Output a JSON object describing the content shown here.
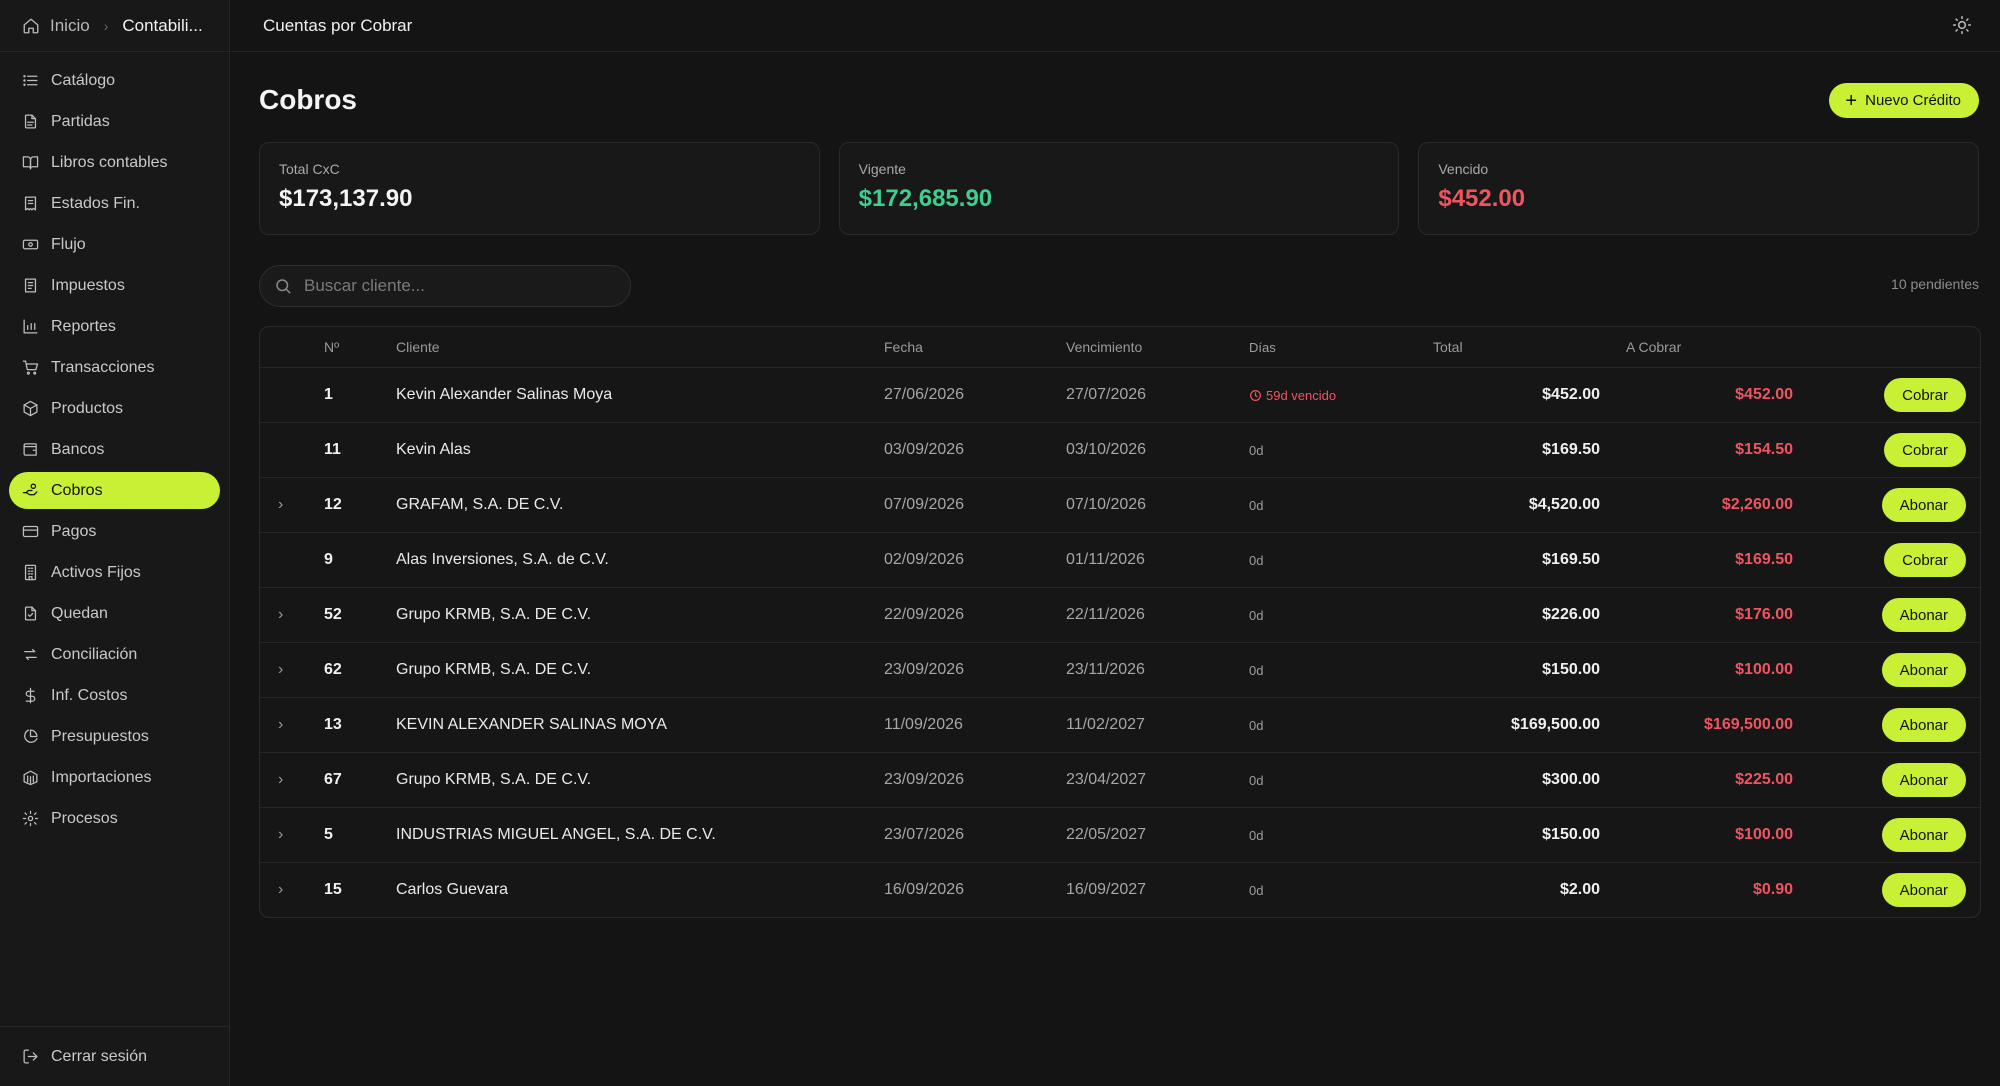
{
  "breadcrumb": {
    "home": "Inicio",
    "current": "Contabili..."
  },
  "sidebar": {
    "items": [
      {
        "label": "Catálogo",
        "icon": "list-icon"
      },
      {
        "label": "Partidas",
        "icon": "file-text-icon"
      },
      {
        "label": "Libros contables",
        "icon": "book-open-icon"
      },
      {
        "label": "Estados Fin.",
        "icon": "receipt-icon"
      },
      {
        "label": "Flujo",
        "icon": "banknote-icon"
      },
      {
        "label": "Impuestos",
        "icon": "tax-receipt-icon"
      },
      {
        "label": "Reportes",
        "icon": "bar-chart-icon"
      },
      {
        "label": "Transacciones",
        "icon": "shopping-cart-icon"
      },
      {
        "label": "Productos",
        "icon": "package-icon"
      },
      {
        "label": "Bancos",
        "icon": "wallet-icon"
      },
      {
        "label": "Cobros",
        "icon": "hand-coins-icon",
        "active": true
      },
      {
        "label": "Pagos",
        "icon": "credit-card-icon"
      },
      {
        "label": "Activos Fijos",
        "icon": "building-icon"
      },
      {
        "label": "Quedan",
        "icon": "file-check-icon"
      },
      {
        "label": "Conciliación",
        "icon": "arrows-exchange-icon"
      },
      {
        "label": "Inf. Costos",
        "icon": "dollar-icon"
      },
      {
        "label": "Presupuestos",
        "icon": "pie-chart-icon"
      },
      {
        "label": "Importaciones",
        "icon": "container-icon"
      },
      {
        "label": "Procesos",
        "icon": "cog-icon"
      }
    ],
    "logout": "Cerrar sesión"
  },
  "topbar": {
    "title": "Cuentas por Cobrar"
  },
  "page": {
    "title": "Cobros",
    "new_button": "Nuevo Crédito"
  },
  "cards": [
    {
      "label": "Total CxC",
      "value": "$173,137.90",
      "color": "#f4f4f4"
    },
    {
      "label": "Vigente",
      "value": "$172,685.90",
      "color": "#3ecf8e"
    },
    {
      "label": "Vencido",
      "value": "$452.00",
      "color": "#ef5561"
    }
  ],
  "search": {
    "placeholder": "Buscar cliente..."
  },
  "pending_text": "10 pendientes",
  "table": {
    "headers": {
      "num": "Nº",
      "cliente": "Cliente",
      "fecha": "Fecha",
      "vencimiento": "Vencimiento",
      "dias": "Días",
      "total": "Total",
      "a_cobrar": "A Cobrar"
    },
    "rows": [
      {
        "expand": false,
        "num": "1",
        "cliente": "Kevin Alexander Salinas Moya",
        "fecha": "27/06/2026",
        "vencimiento": "27/07/2026",
        "dias": "59d vencido",
        "overdue": true,
        "total": "$452.00",
        "a_cobrar": "$452.00",
        "action": "Cobrar"
      },
      {
        "expand": false,
        "num": "11",
        "cliente": "Kevin Alas",
        "fecha": "03/09/2026",
        "vencimiento": "03/10/2026",
        "dias": "0d",
        "overdue": false,
        "total": "$169.50",
        "a_cobrar": "$154.50",
        "action": "Cobrar"
      },
      {
        "expand": true,
        "num": "12",
        "cliente": "GRAFAM, S.A. DE C.V.",
        "fecha": "07/09/2026",
        "vencimiento": "07/10/2026",
        "dias": "0d",
        "overdue": false,
        "total": "$4,520.00",
        "a_cobrar": "$2,260.00",
        "action": "Abonar"
      },
      {
        "expand": false,
        "num": "9",
        "cliente": "Alas Inversiones, S.A. de C.V.",
        "fecha": "02/09/2026",
        "vencimiento": "01/11/2026",
        "dias": "0d",
        "overdue": false,
        "total": "$169.50",
        "a_cobrar": "$169.50",
        "action": "Cobrar"
      },
      {
        "expand": true,
        "num": "52",
        "cliente": "Grupo KRMB, S.A. DE C.V.",
        "fecha": "22/09/2026",
        "vencimiento": "22/11/2026",
        "dias": "0d",
        "overdue": false,
        "total": "$226.00",
        "a_cobrar": "$176.00",
        "action": "Abonar"
      },
      {
        "expand": true,
        "num": "62",
        "cliente": "Grupo KRMB, S.A. DE C.V.",
        "fecha": "23/09/2026",
        "vencimiento": "23/11/2026",
        "dias": "0d",
        "overdue": false,
        "total": "$150.00",
        "a_cobrar": "$100.00",
        "action": "Abonar"
      },
      {
        "expand": true,
        "num": "13",
        "cliente": "KEVIN ALEXANDER SALINAS MOYA",
        "fecha": "11/09/2026",
        "vencimiento": "11/02/2027",
        "dias": "0d",
        "overdue": false,
        "total": "$169,500.00",
        "a_cobrar": "$169,500.00",
        "action": "Abonar"
      },
      {
        "expand": true,
        "num": "67",
        "cliente": "Grupo KRMB, S.A. DE C.V.",
        "fecha": "23/09/2026",
        "vencimiento": "23/04/2027",
        "dias": "0d",
        "overdue": false,
        "total": "$300.00",
        "a_cobrar": "$225.00",
        "action": "Abonar"
      },
      {
        "expand": true,
        "num": "5",
        "cliente": "INDUSTRIAS MIGUEL ANGEL, S.A. DE C.V.",
        "fecha": "23/07/2026",
        "vencimiento": "22/05/2027",
        "dias": "0d",
        "overdue": false,
        "total": "$150.00",
        "a_cobrar": "$100.00",
        "action": "Abonar"
      },
      {
        "expand": true,
        "num": "15",
        "cliente": "Carlos Guevara",
        "fecha": "16/09/2026",
        "vencimiento": "16/09/2027",
        "dias": "0d",
        "overdue": false,
        "total": "$2.00",
        "a_cobrar": "$0.90",
        "action": "Abonar"
      }
    ]
  },
  "colors": {
    "accent": "#c8f135",
    "danger": "#ef5561",
    "success": "#3ecf8e",
    "background": "#141414"
  }
}
